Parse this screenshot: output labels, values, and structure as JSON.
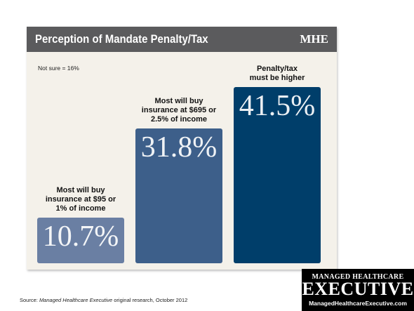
{
  "header": {
    "title": "Perception of Mandate Penalty/Tax",
    "logo": "MHE"
  },
  "note": "Not sure = 16%",
  "chart_data": {
    "type": "bar",
    "title": "Perception of Mandate Penalty/Tax",
    "categories": [
      "Most will buy\ninsurance at $95 or\n1% of income",
      "Most will buy\ninsurance at $695 or\n2.5% of income",
      "Penalty/tax\nmust be higher"
    ],
    "values": [
      10.7,
      31.8,
      41.5
    ],
    "value_labels": [
      "10.7%",
      "31.8%",
      "41.5%"
    ],
    "ylim": [
      0,
      45
    ],
    "grid": false,
    "colors": [
      "#6a7fa3",
      "#3d5f8a",
      "#003e6a"
    ]
  },
  "footer": {
    "source_prefix": "Source: ",
    "source_italic": "Managed Healthcare Executive",
    "source_suffix": " original research, October 2012"
  },
  "brand": {
    "top": "MANAGED HEALTHCARE",
    "main": "EXECUTIVE",
    "url": "ManagedHealthcareExecutive.com"
  }
}
